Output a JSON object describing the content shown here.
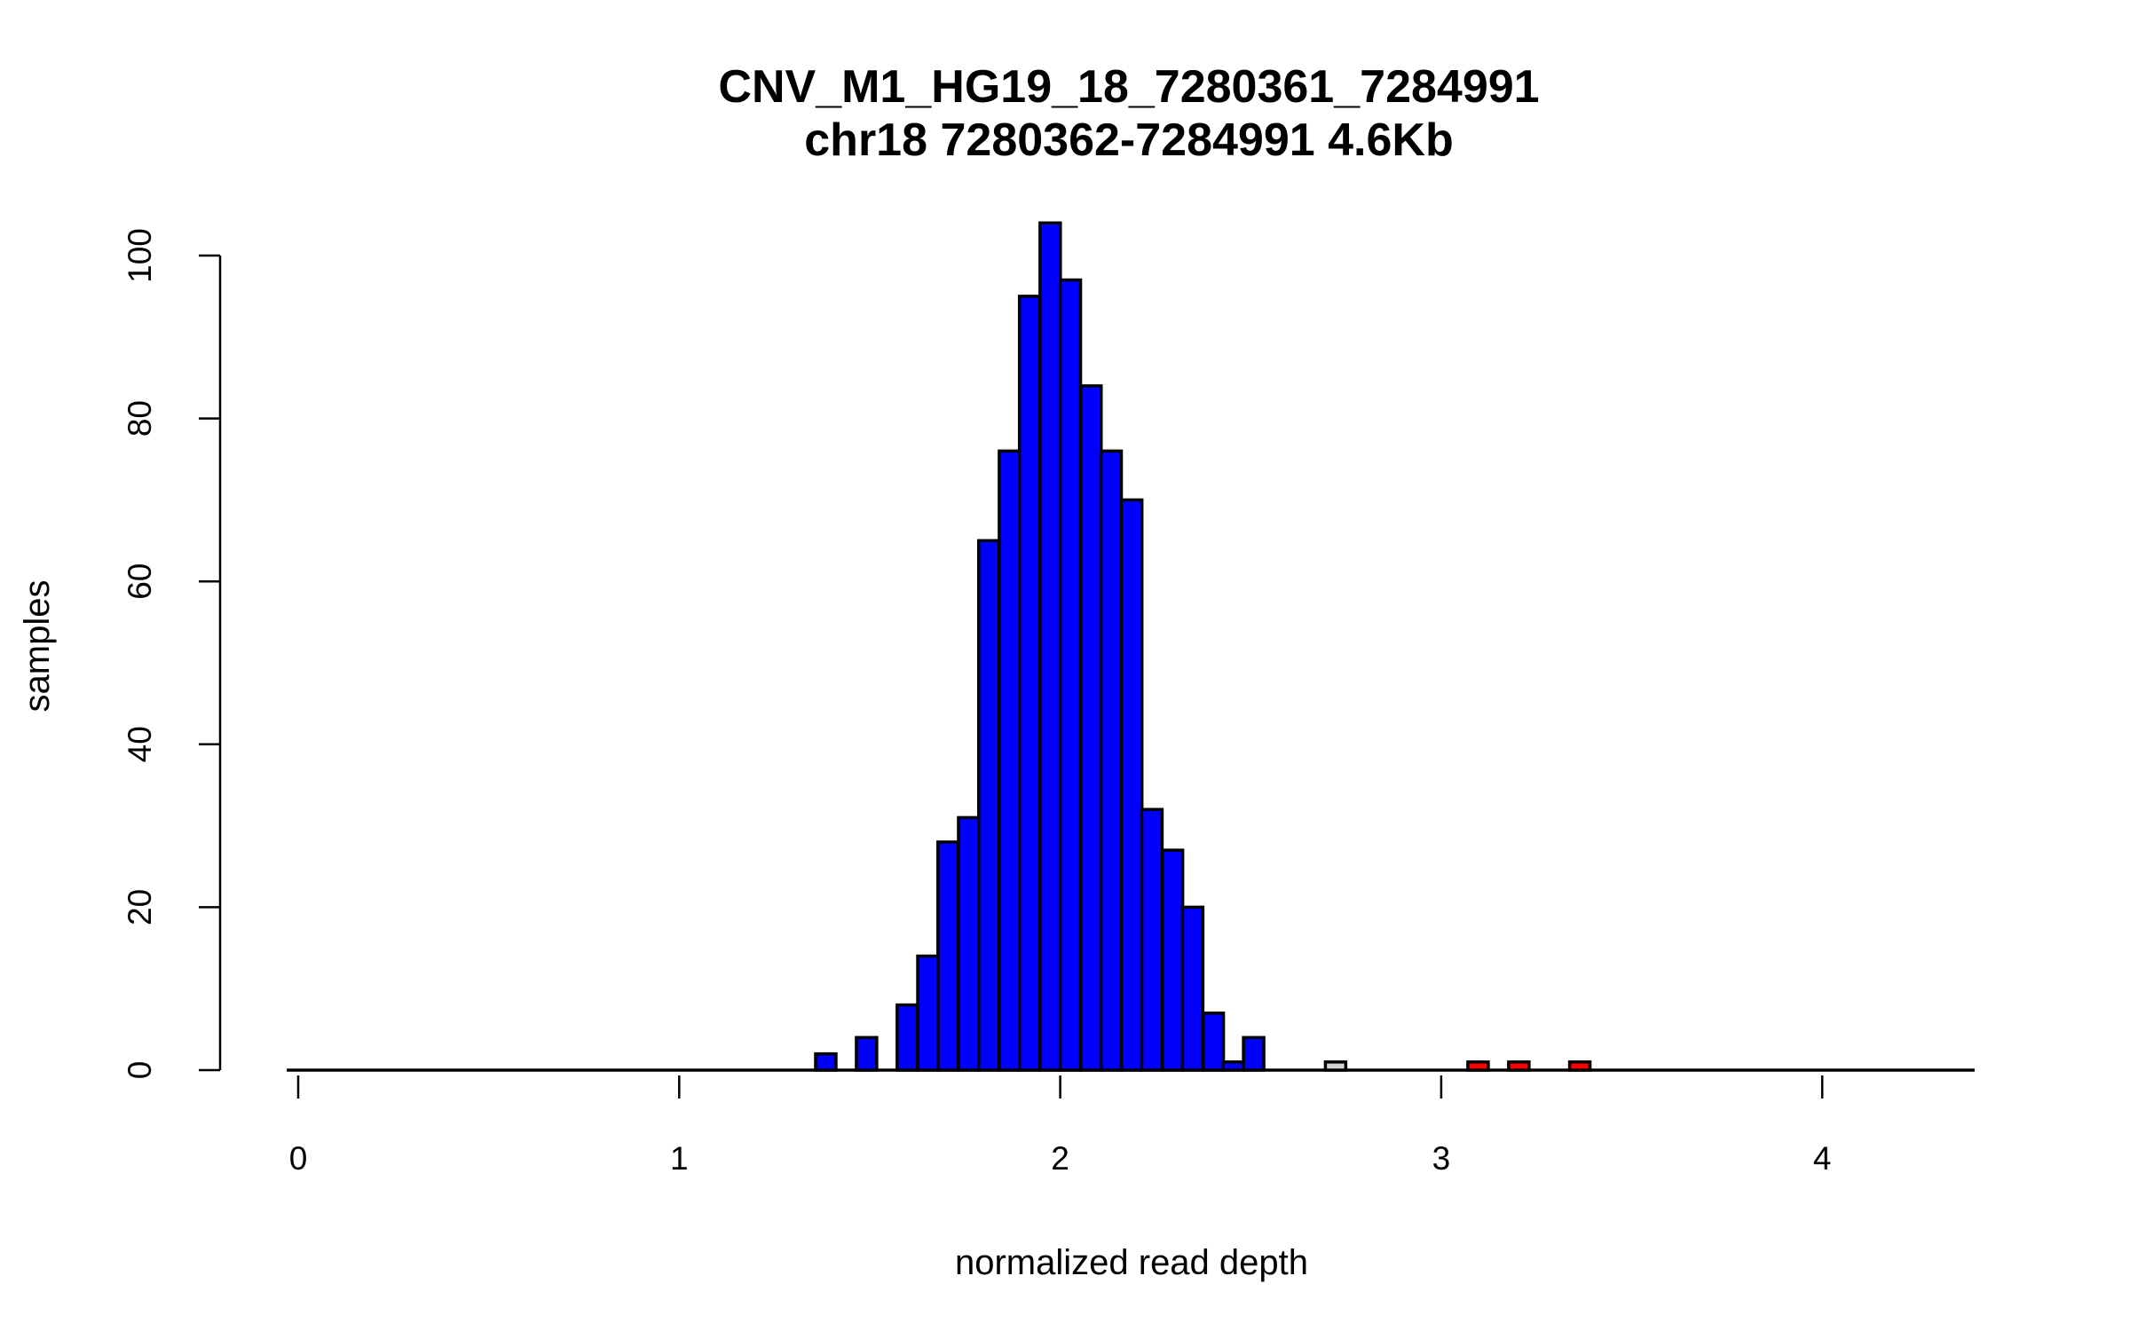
{
  "chart_data": {
    "type": "bar",
    "title": "CNV_M1_HG19_18_7280361_7284991",
    "subtitle": "chr18 7280362-7284991 4.6Kb",
    "xlabel": "normalized read depth",
    "ylabel": "samples",
    "xlim": [
      0,
      4.4
    ],
    "ylim": [
      0,
      104
    ],
    "x_ticks": [
      "0",
      "1",
      "2",
      "3",
      "4"
    ],
    "y_ticks": [
      "0",
      "20",
      "40",
      "60",
      "80",
      "100"
    ],
    "grid": false,
    "bin_width": 0.0535,
    "bins": [
      {
        "start": 1.358,
        "count": 2,
        "color": "#0000ff"
      },
      {
        "start": 1.465,
        "count": 4,
        "color": "#0000ff"
      },
      {
        "start": 1.572,
        "count": 8,
        "color": "#0000ff"
      },
      {
        "start": 1.626,
        "count": 14,
        "color": "#0000ff"
      },
      {
        "start": 1.679,
        "count": 28,
        "color": "#0000ff"
      },
      {
        "start": 1.733,
        "count": 31,
        "color": "#0000ff"
      },
      {
        "start": 1.786,
        "count": 65,
        "color": "#0000ff"
      },
      {
        "start": 1.84,
        "count": 76,
        "color": "#0000ff"
      },
      {
        "start": 1.893,
        "count": 95,
        "color": "#0000ff"
      },
      {
        "start": 1.947,
        "count": 104,
        "color": "#0000ff"
      },
      {
        "start": 2.0,
        "count": 97,
        "color": "#0000ff"
      },
      {
        "start": 2.054,
        "count": 84,
        "color": "#0000ff"
      },
      {
        "start": 2.107,
        "count": 76,
        "color": "#0000ff"
      },
      {
        "start": 2.161,
        "count": 70,
        "color": "#0000ff"
      },
      {
        "start": 2.214,
        "count": 32,
        "color": "#0000ff"
      },
      {
        "start": 2.268,
        "count": 27,
        "color": "#0000ff"
      },
      {
        "start": 2.321,
        "count": 20,
        "color": "#0000ff"
      },
      {
        "start": 2.375,
        "count": 7,
        "color": "#0000ff"
      },
      {
        "start": 2.428,
        "count": 1,
        "color": "#0000ff"
      },
      {
        "start": 2.481,
        "count": 4,
        "color": "#0000ff"
      },
      {
        "start": 2.696,
        "count": 1,
        "color": "#d3d3d3"
      },
      {
        "start": 3.07,
        "count": 1,
        "color": "#ff0000"
      },
      {
        "start": 3.177,
        "count": 1,
        "color": "#ff0000"
      },
      {
        "start": 3.337,
        "count": 1,
        "color": "#ff0000"
      }
    ]
  }
}
